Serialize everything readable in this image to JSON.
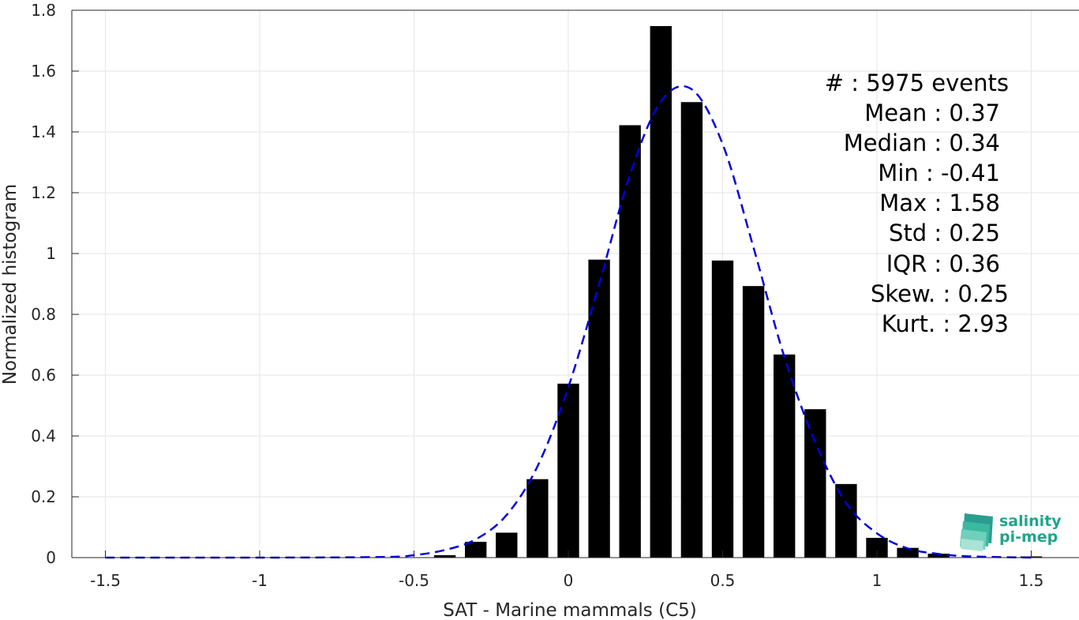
{
  "chart_data": {
    "type": "bar",
    "title": "",
    "xlabel": "SAT - Marine mammals (C5)",
    "ylabel": "Normalized histogram",
    "xlim": [
      -1.62,
      1.62
    ],
    "ylim": [
      0,
      1.8
    ],
    "grid": true,
    "x_ticks": [
      -1.5,
      -1,
      -0.5,
      0,
      0.5,
      1,
      1.5
    ],
    "x_tick_labels": [
      "-1.5",
      "-1",
      "-0.5",
      "0",
      "0.5",
      "1",
      "1.5"
    ],
    "y_ticks": [
      0,
      0.2,
      0.4,
      0.6,
      0.8,
      1,
      1.2,
      1.4,
      1.6,
      1.8
    ],
    "y_tick_labels": [
      "0",
      "0.2",
      "0.4",
      "0.6",
      "0.8",
      "1",
      "1.2",
      "1.4",
      "1.6",
      "1.8"
    ],
    "bar_width": 0.07,
    "bar_color": "#000000",
    "bars": {
      "x": [
        -0.4,
        -0.3,
        -0.2,
        -0.1,
        0.0,
        0.1,
        0.2,
        0.3,
        0.4,
        0.5,
        0.6,
        0.7,
        0.8,
        0.9,
        1.0,
        1.1,
        1.2,
        1.3,
        1.4,
        1.5
      ],
      "values": [
        0.008,
        0.052,
        0.082,
        0.258,
        0.572,
        0.98,
        1.422,
        1.748,
        1.498,
        0.977,
        0.893,
        0.668,
        0.488,
        0.242,
        0.065,
        0.032,
        0.013,
        0.0,
        0.0,
        0.004
      ]
    },
    "fit_curve": {
      "color": "#0000dd",
      "style": "dashed",
      "x": [
        -1.5,
        -1.0,
        -0.6,
        -0.5,
        -0.4,
        -0.3,
        -0.2,
        -0.1,
        0.0,
        0.1,
        0.2,
        0.3,
        0.4,
        0.5,
        0.6,
        0.7,
        0.8,
        0.9,
        1.0,
        1.1,
        1.2,
        1.3,
        1.5
      ],
      "y": [
        0.0,
        0.0,
        0.002,
        0.008,
        0.025,
        0.06,
        0.14,
        0.3,
        0.56,
        0.9,
        1.26,
        1.5,
        1.54,
        1.36,
        1.02,
        0.66,
        0.38,
        0.18,
        0.08,
        0.03,
        0.012,
        0.004,
        0.0
      ]
    },
    "annotations": [
      "#  : 5975 events",
      "Mean : 0.37",
      "Median : 0.34",
      "Min : -0.41",
      "Max : 1.58",
      "Std : 0.25",
      "IQR : 0.36",
      "Skew. : 0.25",
      "Kurt. : 2.93"
    ]
  },
  "logo": {
    "line1": "salinity",
    "line2": "pi-mep"
  }
}
